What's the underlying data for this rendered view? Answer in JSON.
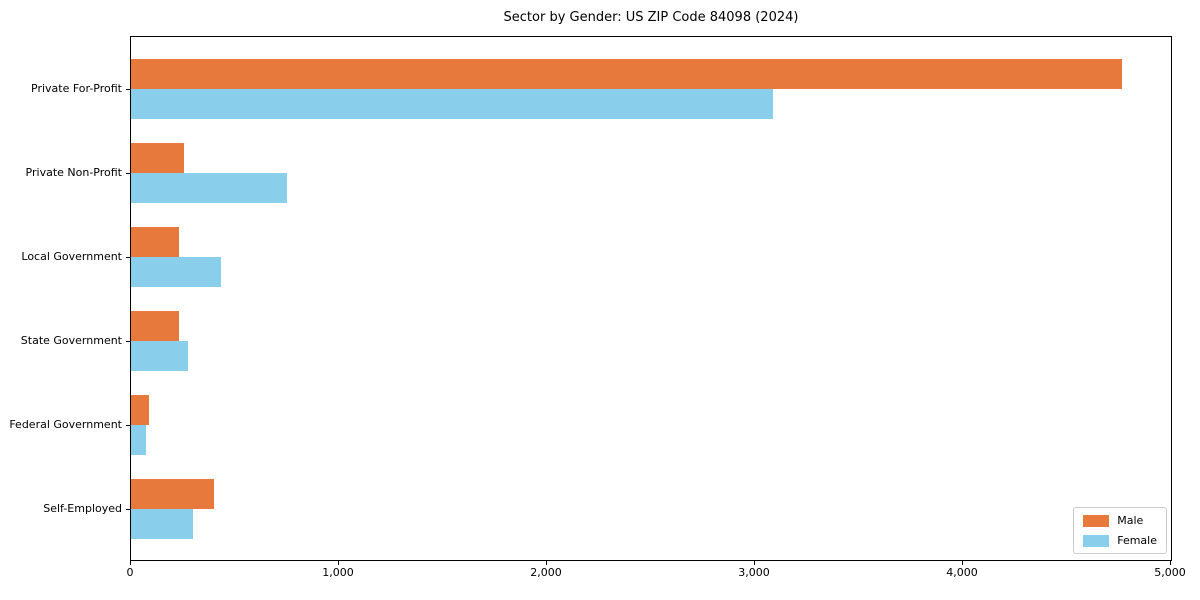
{
  "title": "Sector by Gender: US ZIP Code 84098 (2024)",
  "chart_data": {
    "type": "bar",
    "orientation": "horizontal",
    "title": "Sector by Gender: US ZIP Code 84098 (2024)",
    "categories": [
      "Private For-Profit",
      "Private Non-Profit",
      "Local Government",
      "State Government",
      "Federal Government",
      "Self-Employed"
    ],
    "series": [
      {
        "name": "Male",
        "color": "#e8793c",
        "values": [
          4763,
          254,
          232,
          229,
          88,
          398
        ]
      },
      {
        "name": "Female",
        "color": "#89ceeb",
        "values": [
          3087,
          749,
          432,
          272,
          72,
          296
        ]
      }
    ],
    "xlim": [
      0,
      5000
    ],
    "x_ticks": [
      0,
      1000,
      2000,
      3000,
      4000,
      5000
    ],
    "x_tick_labels": [
      "0",
      "1,000",
      "2,000",
      "3,000",
      "4,000",
      "5,000"
    ],
    "xlabel": "",
    "ylabel": "",
    "grid": false,
    "legend_position": "lower right"
  }
}
